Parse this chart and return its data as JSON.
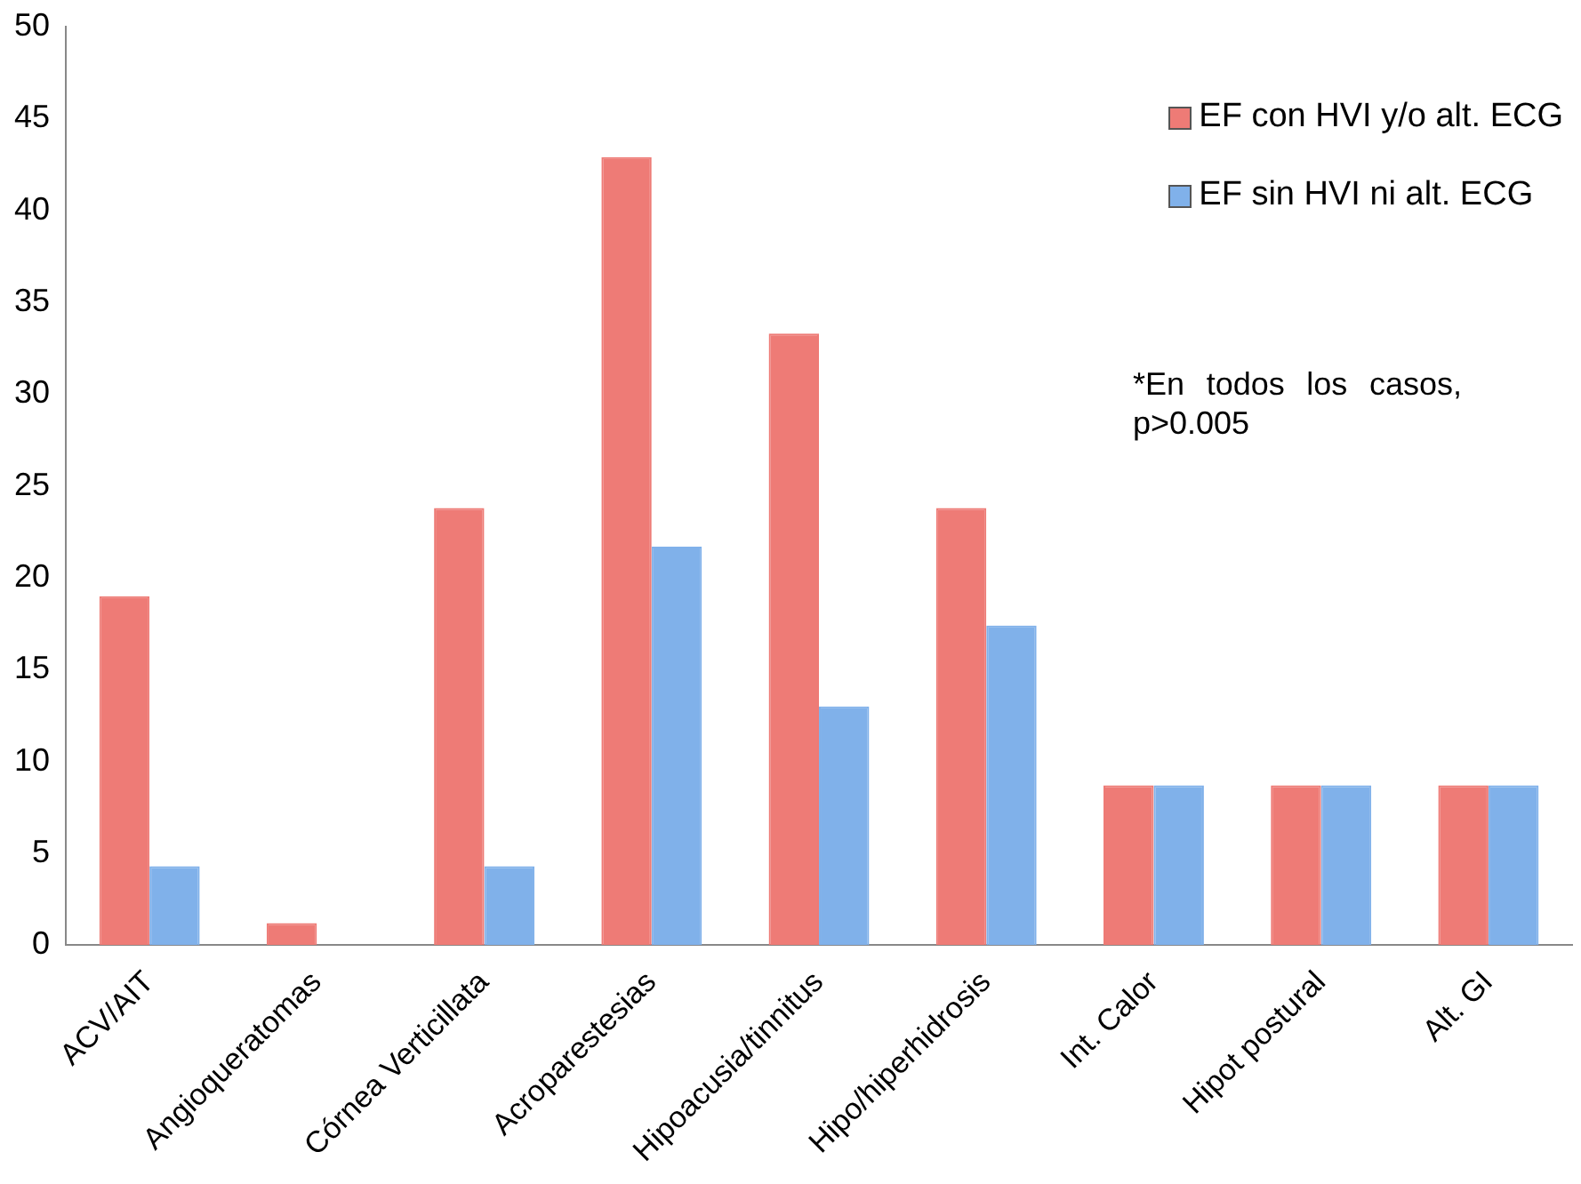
{
  "chart_data": {
    "type": "bar",
    "categories": [
      "ACV/AIT",
      "Angioqueratomas",
      "Córnea Verticillata",
      "Acroparestesias",
      "Hipoacusia/tinnitus",
      "Hipo/hiperhidrosis",
      "Int. Calor",
      "Hipot postural",
      "Alt. GI"
    ],
    "series": [
      {
        "name": "EF con HVI y/o alt. ECG",
        "color": "#ee7b76",
        "values": [
          19.0,
          1.2,
          23.8,
          42.9,
          33.3,
          23.8,
          8.7,
          8.7,
          8.7
        ]
      },
      {
        "name": "EF sin HVI ni alt. ECG",
        "color": "#80b1ea",
        "values": [
          4.3,
          0,
          4.3,
          21.7,
          13.0,
          17.4,
          8.7,
          8.7,
          8.7
        ]
      }
    ],
    "ylim": [
      0,
      50
    ],
    "yticks": [
      0,
      5,
      10,
      15,
      20,
      25,
      30,
      35,
      40,
      45,
      50
    ],
    "grid": false,
    "legend": "top right",
    "annotations": [
      "*En todos los casos, p>0.005"
    ]
  }
}
